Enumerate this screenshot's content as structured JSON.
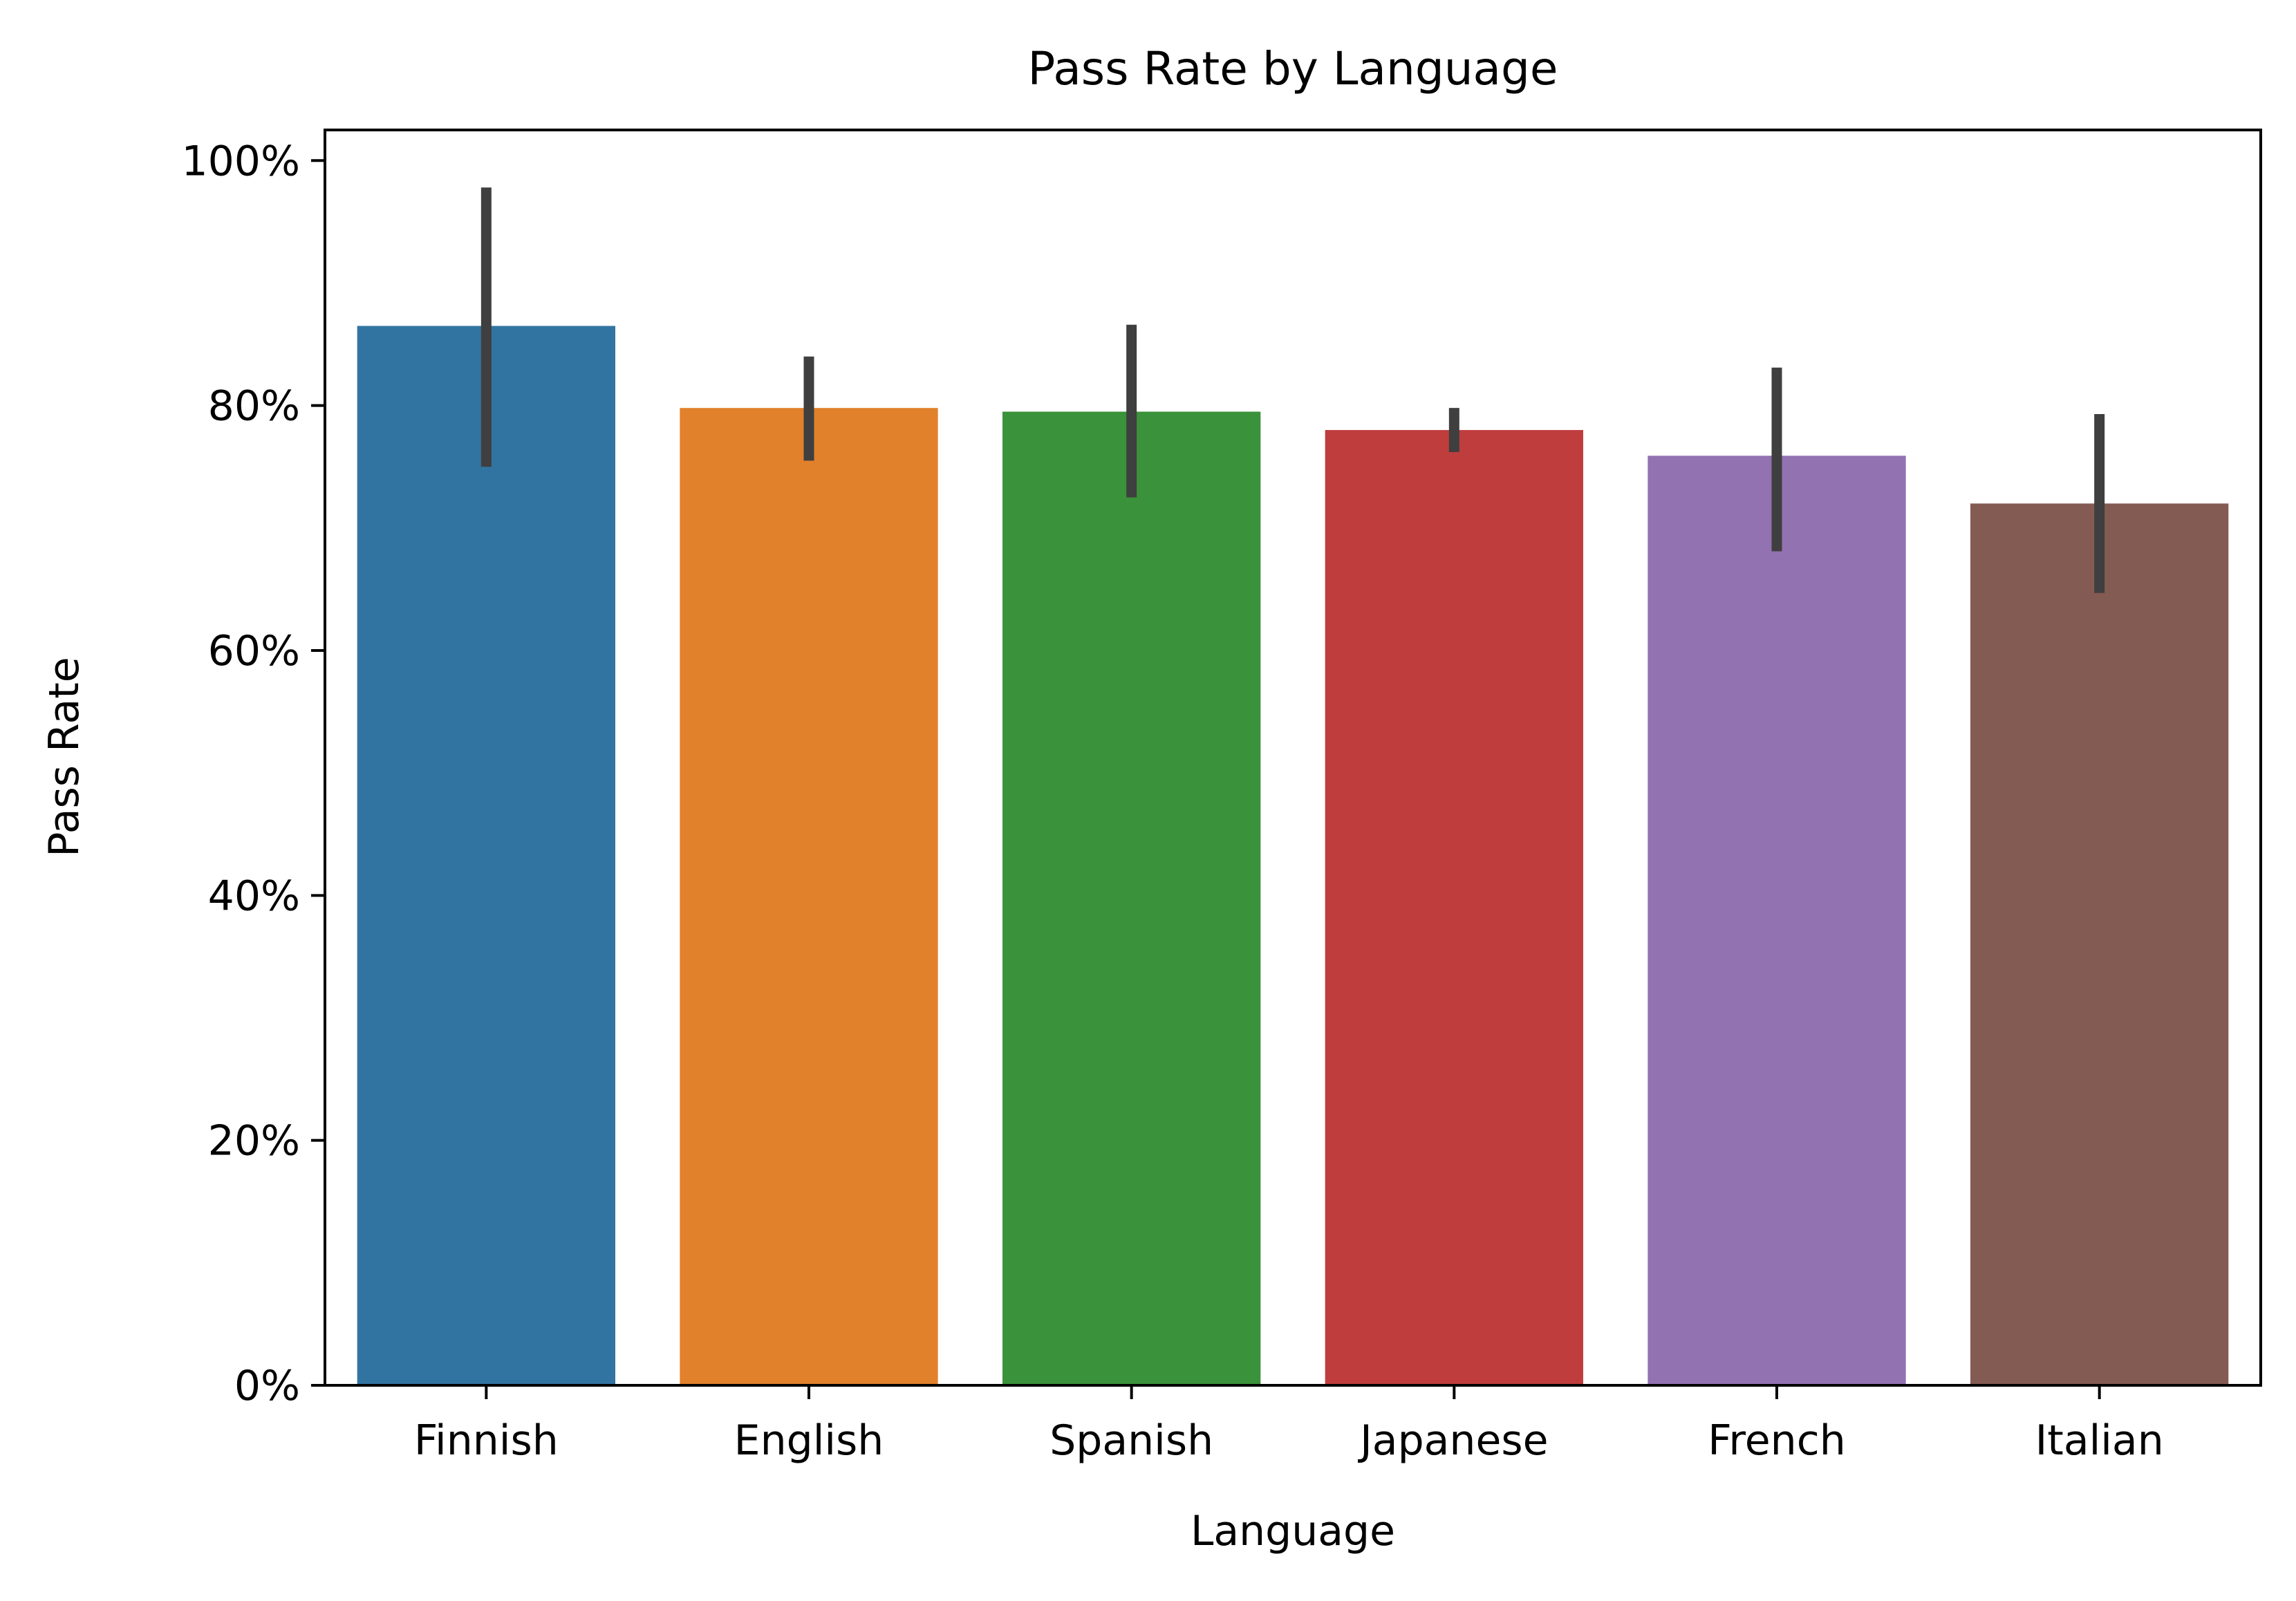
{
  "chart_data": {
    "type": "bar",
    "title": "Pass Rate by Language",
    "xlabel": "Language",
    "ylabel": "Pass Rate",
    "categories": [
      "Finnish",
      "English",
      "Spanish",
      "Japanese",
      "French",
      "Italian"
    ],
    "values": [
      0.865,
      0.798,
      0.795,
      0.78,
      0.759,
      0.72
    ],
    "error_bars": [
      [
        0.75,
        0.978
      ],
      [
        0.755,
        0.84
      ],
      [
        0.725,
        0.866
      ],
      [
        0.762,
        0.798
      ],
      [
        0.681,
        0.831
      ],
      [
        0.647,
        0.793
      ]
    ],
    "ylim": [
      0,
      1.025
    ],
    "yticks": [
      0,
      0.2,
      0.4,
      0.6,
      0.8,
      1.0
    ],
    "ytick_labels": [
      "0%",
      "20%",
      "40%",
      "60%",
      "80%",
      "100%"
    ],
    "colors": [
      "#3274a1",
      "#e1812c",
      "#3a923a",
      "#c03d3e",
      "#9372b2",
      "#845b53"
    ],
    "errorbar_color": "#3f3f3f",
    "grid": false,
    "legend": "none"
  }
}
